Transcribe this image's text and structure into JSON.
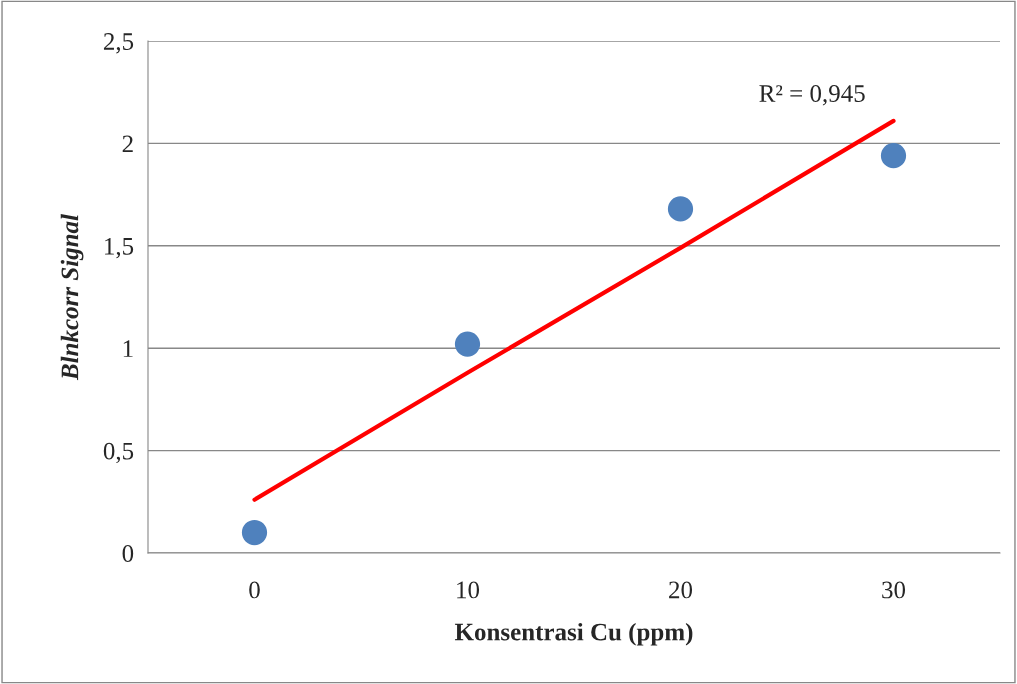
{
  "chart_data": {
    "type": "scatter",
    "xlabel": "Konsentrasi Cu (ppm)",
    "ylabel": "Blnkcorr Signal",
    "categories": [
      "0",
      "10",
      "20",
      "30"
    ],
    "series": [
      {
        "color": "#4f81bd",
        "values": [
          0.1,
          1.02,
          1.68,
          1.94
        ],
        "marker": "circle"
      },
      {
        "type": "line",
        "color": "#ff0000",
        "values": [
          0.26,
          0.88,
          1.49,
          2.11
        ],
        "line_style": "solid"
      }
    ],
    "ylim": [
      0,
      2.5
    ],
    "yticks": [
      0,
      {
        "value": 0.5,
        "label": "0,5"
      },
      1,
      {
        "value": 1.5,
        "label": "1,5"
      },
      2,
      {
        "value": 2.5,
        "label": "2,5"
      }
    ],
    "grid": "y",
    "legend": false,
    "annotations": [
      {
        "text": "R² = 0,945",
        "x": "30",
        "y": 2.11
      }
    ]
  }
}
